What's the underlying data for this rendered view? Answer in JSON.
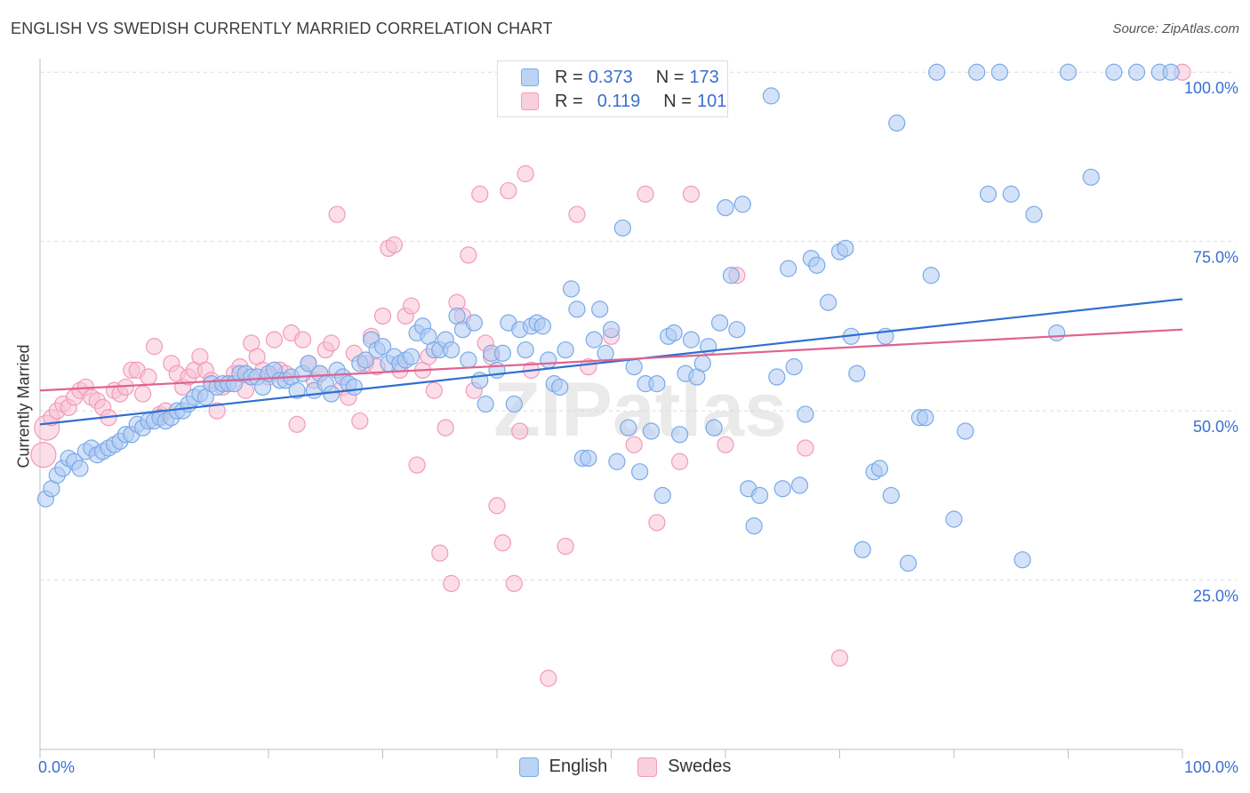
{
  "title": "ENGLISH VS SWEDISH CURRENTLY MARRIED CORRELATION CHART",
  "source": "Source: ZipAtlas.com",
  "watermark": "ZIPatlas",
  "legend_box": {
    "rows": [
      {
        "r_label": "R =",
        "r_value": "0.373",
        "n_label": "N =",
        "n_value": "173"
      },
      {
        "r_label": "R =",
        "r_value": "0.119",
        "n_label": "N =",
        "n_value": "101"
      }
    ]
  },
  "chart_data": {
    "type": "scatter",
    "title": "ENGLISH VS SWEDISH CURRENTLY MARRIED CORRELATION CHART",
    "xlabel": "",
    "ylabel": "Currently Married",
    "xlim": [
      0,
      100
    ],
    "ylim": [
      0,
      102
    ],
    "x_tick_labels": [
      "0.0%",
      "100.0%"
    ],
    "y_tick_labels": [
      "25.0%",
      "50.0%",
      "75.0%",
      "100.0%"
    ],
    "y_ticks": [
      25,
      50,
      75,
      100
    ],
    "grid": "horizontal-dashed",
    "legend_position": "bottom",
    "series": [
      {
        "name": "English",
        "color": "#7aaae8",
        "fill": "#aecbf2",
        "trend": {
          "x": [
            0,
            100
          ],
          "y": [
            48.0,
            66.5
          ],
          "color": "#2f6fd0"
        },
        "points": [
          [
            0.5,
            37
          ],
          [
            1,
            38.5
          ],
          [
            1.5,
            40.5
          ],
          [
            2,
            41.5
          ],
          [
            2.5,
            43
          ],
          [
            3,
            42.5
          ],
          [
            3.5,
            41.5
          ],
          [
            4,
            44
          ],
          [
            4.5,
            44.5
          ],
          [
            5,
            43.5
          ],
          [
            5.5,
            44
          ],
          [
            6,
            44.5
          ],
          [
            6.5,
            45
          ],
          [
            7,
            45.5
          ],
          [
            7.5,
            46.5
          ],
          [
            8,
            46.5
          ],
          [
            8.5,
            48
          ],
          [
            9,
            47.5
          ],
          [
            9.5,
            48.5
          ],
          [
            10,
            48.5
          ],
          [
            10.5,
            49
          ],
          [
            11,
            48.5
          ],
          [
            11.5,
            49
          ],
          [
            12,
            50
          ],
          [
            12.5,
            50
          ],
          [
            13,
            51
          ],
          [
            13.5,
            52
          ],
          [
            14,
            52.5
          ],
          [
            14.5,
            52
          ],
          [
            15,
            54
          ],
          [
            15.5,
            53.5
          ],
          [
            16,
            54
          ],
          [
            16.5,
            54
          ],
          [
            17,
            54
          ],
          [
            17.5,
            55.5
          ],
          [
            18,
            55.5
          ],
          [
            18.5,
            55
          ],
          [
            19,
            55
          ],
          [
            19.5,
            53.5
          ],
          [
            20,
            55.5
          ],
          [
            20.5,
            56
          ],
          [
            21,
            54.5
          ],
          [
            21.5,
            54.5
          ],
          [
            22,
            55
          ],
          [
            22.5,
            53
          ],
          [
            23,
            55.5
          ],
          [
            23.5,
            57
          ],
          [
            24,
            53
          ],
          [
            24.5,
            55.5
          ],
          [
            25,
            54
          ],
          [
            25.5,
            52.5
          ],
          [
            26,
            56
          ],
          [
            26.5,
            55
          ],
          [
            27,
            54
          ],
          [
            27.5,
            53.5
          ],
          [
            28,
            57
          ],
          [
            28.5,
            57.5
          ],
          [
            29,
            60.5
          ],
          [
            29.5,
            59
          ],
          [
            30,
            59.5
          ],
          [
            30.5,
            57
          ],
          [
            31,
            58
          ],
          [
            31.5,
            57
          ],
          [
            32,
            57.5
          ],
          [
            32.5,
            58
          ],
          [
            33,
            61.5
          ],
          [
            33.5,
            62.5
          ],
          [
            34,
            61
          ],
          [
            34.5,
            59
          ],
          [
            35,
            59
          ],
          [
            35.5,
            60.5
          ],
          [
            36,
            59
          ],
          [
            36.5,
            64
          ],
          [
            37,
            62
          ],
          [
            37.5,
            57.5
          ],
          [
            38,
            63
          ],
          [
            38.5,
            54.5
          ],
          [
            39,
            51
          ],
          [
            39.5,
            58.5
          ],
          [
            40,
            56
          ],
          [
            40.5,
            58.5
          ],
          [
            41,
            63
          ],
          [
            41.5,
            51
          ],
          [
            42,
            62
          ],
          [
            42.5,
            59
          ],
          [
            43,
            62.5
          ],
          [
            43.5,
            63
          ],
          [
            44,
            62.5
          ],
          [
            44.5,
            57.5
          ],
          [
            45,
            54
          ],
          [
            45.5,
            53.5
          ],
          [
            46,
            59
          ],
          [
            46.5,
            68
          ],
          [
            47,
            65
          ],
          [
            47.5,
            43
          ],
          [
            48,
            43
          ],
          [
            48.5,
            60.5
          ],
          [
            49,
            65
          ],
          [
            49.5,
            58.5
          ],
          [
            50,
            62
          ],
          [
            50.5,
            42.5
          ],
          [
            51,
            77
          ],
          [
            51.5,
            47.5
          ],
          [
            52,
            56.5
          ],
          [
            52.5,
            41
          ],
          [
            53,
            54
          ],
          [
            53.5,
            47
          ],
          [
            54,
            54
          ],
          [
            54.5,
            37.5
          ],
          [
            55,
            61
          ],
          [
            55.5,
            61.5
          ],
          [
            56,
            46.5
          ],
          [
            56.5,
            55.5
          ],
          [
            57,
            60.5
          ],
          [
            57.5,
            55
          ],
          [
            58,
            57
          ],
          [
            58.5,
            59.5
          ],
          [
            59,
            47.5
          ],
          [
            59.5,
            63
          ],
          [
            60,
            80
          ],
          [
            60.5,
            70
          ],
          [
            61,
            62
          ],
          [
            61.5,
            80.5
          ],
          [
            62,
            38.5
          ],
          [
            62.5,
            33
          ],
          [
            63,
            37.5
          ],
          [
            64,
            96.5
          ],
          [
            64.5,
            55
          ],
          [
            65,
            38.5
          ],
          [
            65.5,
            71
          ],
          [
            66,
            56.5
          ],
          [
            66.5,
            39
          ],
          [
            67,
            49.5
          ],
          [
            67.5,
            72.5
          ],
          [
            68,
            71.5
          ],
          [
            69,
            66
          ],
          [
            70,
            73.5
          ],
          [
            70.5,
            74
          ],
          [
            71,
            61
          ],
          [
            71.5,
            55.5
          ],
          [
            72,
            29.5
          ],
          [
            73,
            41
          ],
          [
            73.5,
            41.5
          ],
          [
            74,
            61
          ],
          [
            74.5,
            37.5
          ],
          [
            75,
            92.5
          ],
          [
            76,
            27.5
          ],
          [
            77,
            49
          ],
          [
            77.5,
            49
          ],
          [
            78,
            70
          ],
          [
            78.5,
            100
          ],
          [
            80,
            34
          ],
          [
            81,
            47
          ],
          [
            82,
            100
          ],
          [
            83,
            82
          ],
          [
            84,
            100
          ],
          [
            85,
            82
          ],
          [
            86,
            28
          ],
          [
            87,
            79
          ],
          [
            89,
            61.5
          ],
          [
            90,
            100
          ],
          [
            92,
            84.5
          ],
          [
            94,
            100
          ],
          [
            96,
            100
          ],
          [
            98,
            100
          ],
          [
            99,
            100
          ]
        ]
      },
      {
        "name": "Swedes",
        "color": "#f29ab8",
        "fill": "#f7c3d6",
        "trend": {
          "x": [
            0,
            100
          ],
          "y": [
            53.0,
            62.0
          ],
          "color": "#e0628f"
        },
        "points": [
          [
            0.3,
            43.5
          ],
          [
            0.6,
            47.5
          ],
          [
            1,
            49
          ],
          [
            1.5,
            50
          ],
          [
            2,
            51
          ],
          [
            2.5,
            50.5
          ],
          [
            3,
            52
          ],
          [
            3.5,
            53
          ],
          [
            4,
            53.5
          ],
          [
            4.5,
            52
          ],
          [
            5,
            51.5
          ],
          [
            5.5,
            50.5
          ],
          [
            6,
            49
          ],
          [
            6.5,
            53
          ],
          [
            7,
            52.5
          ],
          [
            7.5,
            53.5
          ],
          [
            8,
            56
          ],
          [
            8.5,
            56
          ],
          [
            9,
            52.5
          ],
          [
            9.5,
            55
          ],
          [
            10,
            59.5
          ],
          [
            10.5,
            49.5
          ],
          [
            11,
            50
          ],
          [
            11.5,
            57
          ],
          [
            12,
            55.5
          ],
          [
            12.5,
            53.5
          ],
          [
            13,
            55
          ],
          [
            13.5,
            56
          ],
          [
            14,
            58
          ],
          [
            14.5,
            56
          ],
          [
            15,
            54.5
          ],
          [
            15.5,
            50
          ],
          [
            16,
            53.5
          ],
          [
            16.5,
            54
          ],
          [
            17,
            55.5
          ],
          [
            17.5,
            56.5
          ],
          [
            18,
            53
          ],
          [
            18.5,
            60
          ],
          [
            19,
            58
          ],
          [
            19.5,
            56
          ],
          [
            20,
            55
          ],
          [
            20.5,
            60.5
          ],
          [
            21,
            56
          ],
          [
            21.5,
            55.5
          ],
          [
            22,
            61.5
          ],
          [
            22.5,
            48
          ],
          [
            23,
            60.5
          ],
          [
            23.5,
            57
          ],
          [
            24,
            54.5
          ],
          [
            24.5,
            55.5
          ],
          [
            25,
            59
          ],
          [
            25.5,
            60
          ],
          [
            26,
            79
          ],
          [
            26.5,
            53.5
          ],
          [
            27,
            52
          ],
          [
            27.5,
            58.5
          ],
          [
            28,
            48.5
          ],
          [
            28.5,
            57
          ],
          [
            29,
            61
          ],
          [
            29.5,
            56.5
          ],
          [
            30,
            64
          ],
          [
            30.5,
            74
          ],
          [
            31,
            74.5
          ],
          [
            31.5,
            56
          ],
          [
            32,
            64
          ],
          [
            32.5,
            65.5
          ],
          [
            33,
            42
          ],
          [
            33.5,
            56
          ],
          [
            34,
            58
          ],
          [
            34.5,
            53
          ],
          [
            35,
            29
          ],
          [
            35.5,
            47.5
          ],
          [
            36,
            24.5
          ],
          [
            36.5,
            66
          ],
          [
            37,
            64
          ],
          [
            37.5,
            73
          ],
          [
            38,
            53
          ],
          [
            38.5,
            82
          ],
          [
            39,
            60
          ],
          [
            39.5,
            58
          ],
          [
            40,
            36
          ],
          [
            40.5,
            30.5
          ],
          [
            41,
            82.5
          ],
          [
            41.5,
            24.5
          ],
          [
            42,
            47
          ],
          [
            42.5,
            85
          ],
          [
            43,
            56
          ],
          [
            44,
            100
          ],
          [
            44.5,
            10.5
          ],
          [
            46,
            30
          ],
          [
            47,
            79
          ],
          [
            48,
            56.5
          ],
          [
            50,
            61
          ],
          [
            52,
            45
          ],
          [
            53,
            82
          ],
          [
            54,
            33.5
          ],
          [
            56,
            42.5
          ],
          [
            57,
            82
          ],
          [
            60,
            45
          ],
          [
            61,
            70
          ],
          [
            67,
            44.5
          ],
          [
            70,
            13.5
          ],
          [
            100,
            100
          ]
        ]
      }
    ]
  },
  "axes": {
    "y_title": "Currently Married",
    "x_left_label": "0.0%",
    "x_right_label": "100.0%"
  },
  "bottom_legend": [
    {
      "label": "English",
      "color": "#7aaae8",
      "fill": "#bcd3f4"
    },
    {
      "label": "Swedes",
      "color": "#f29ab8",
      "fill": "#f9cfde"
    }
  ]
}
